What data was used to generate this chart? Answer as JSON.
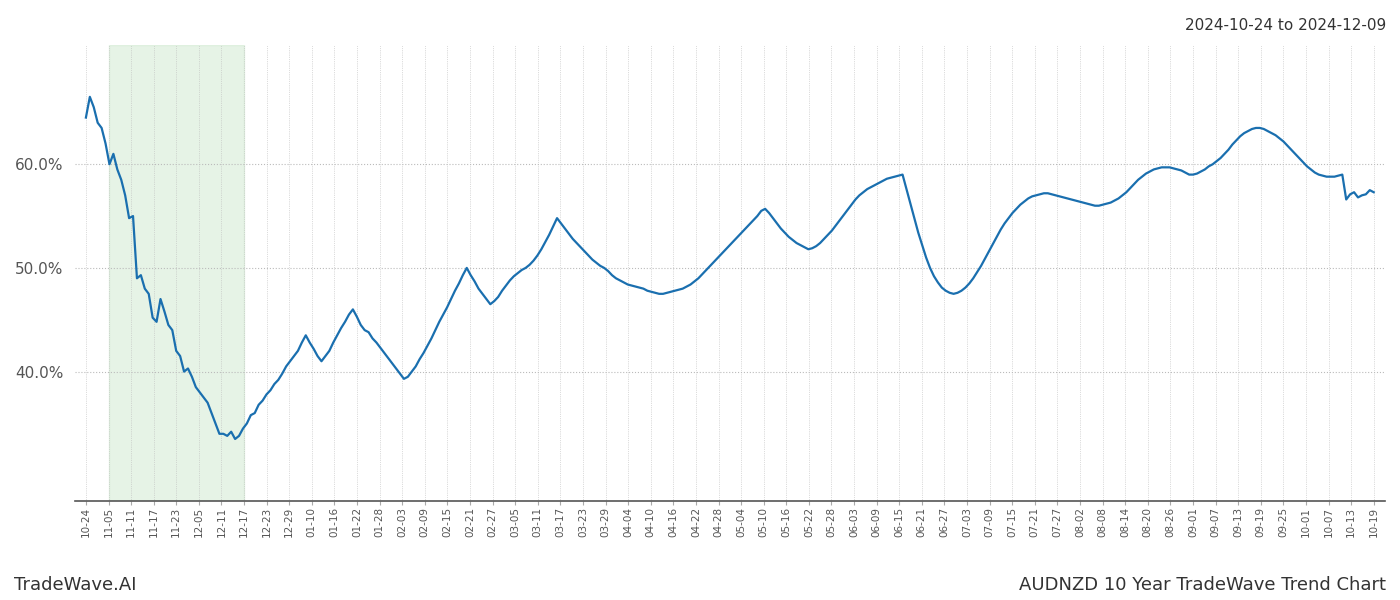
{
  "title_top_right": "2024-10-24 to 2024-12-09",
  "title_bottom_left": "TradeWave.AI",
  "title_bottom_right": "AUDNZD 10 Year TradeWave Trend Chart",
  "line_color": "#1a6faf",
  "line_width": 1.6,
  "shade_color": "#c8e6c9",
  "shade_alpha": 0.45,
  "background_color": "#ffffff",
  "grid_color": "#bbbbbb",
  "grid_style": ":",
  "ytick_labels": [
    "40.0%",
    "50.0%",
    "60.0%"
  ],
  "ytick_values": [
    0.4,
    0.5,
    0.6
  ],
  "ylim": [
    0.275,
    0.715
  ],
  "xtick_labels": [
    "10-24",
    "11-05",
    "11-11",
    "11-17",
    "11-23",
    "12-05",
    "12-11",
    "12-17",
    "12-23",
    "12-29",
    "01-10",
    "01-16",
    "01-22",
    "01-28",
    "02-03",
    "02-09",
    "02-15",
    "02-21",
    "02-27",
    "03-05",
    "03-11",
    "03-17",
    "03-23",
    "03-29",
    "04-04",
    "04-10",
    "04-16",
    "04-22",
    "04-28",
    "05-04",
    "05-10",
    "05-16",
    "05-22",
    "05-28",
    "06-03",
    "06-09",
    "06-15",
    "06-21",
    "06-27",
    "07-03",
    "07-09",
    "07-15",
    "07-21",
    "07-27",
    "08-02",
    "08-08",
    "08-14",
    "08-20",
    "08-26",
    "09-01",
    "09-07",
    "09-13",
    "09-19",
    "09-25",
    "10-01",
    "10-07",
    "10-13",
    "10-19"
  ],
  "shade_label_start": "11-05",
  "shade_label_end": "12-17",
  "values": [
    0.645,
    0.665,
    0.655,
    0.64,
    0.635,
    0.62,
    0.6,
    0.61,
    0.595,
    0.585,
    0.57,
    0.548,
    0.55,
    0.49,
    0.493,
    0.48,
    0.475,
    0.452,
    0.448,
    0.47,
    0.458,
    0.445,
    0.44,
    0.42,
    0.415,
    0.4,
    0.403,
    0.395,
    0.385,
    0.38,
    0.375,
    0.37,
    0.36,
    0.35,
    0.34,
    0.34,
    0.338,
    0.342,
    0.335,
    0.338,
    0.345,
    0.35,
    0.358,
    0.36,
    0.368,
    0.372,
    0.378,
    0.382,
    0.388,
    0.392,
    0.398,
    0.405,
    0.41,
    0.415,
    0.42,
    0.428,
    0.435,
    0.428,
    0.422,
    0.415,
    0.41,
    0.415,
    0.42,
    0.428,
    0.435,
    0.442,
    0.448,
    0.455,
    0.46,
    0.453,
    0.445,
    0.44,
    0.438,
    0.432,
    0.428,
    0.423,
    0.418,
    0.413,
    0.408,
    0.403,
    0.398,
    0.393,
    0.395,
    0.4,
    0.405,
    0.412,
    0.418,
    0.425,
    0.432,
    0.44,
    0.448,
    0.455,
    0.462,
    0.47,
    0.478,
    0.485,
    0.493,
    0.5,
    0.493,
    0.487,
    0.48,
    0.475,
    0.47,
    0.465,
    0.468,
    0.472,
    0.478,
    0.483,
    0.488,
    0.492,
    0.495,
    0.498,
    0.5,
    0.503,
    0.507,
    0.512,
    0.518,
    0.525,
    0.532,
    0.54,
    0.548,
    0.543,
    0.538,
    0.533,
    0.528,
    0.524,
    0.52,
    0.516,
    0.512,
    0.508,
    0.505,
    0.502,
    0.5,
    0.497,
    0.493,
    0.49,
    0.488,
    0.486,
    0.484,
    0.483,
    0.482,
    0.481,
    0.48,
    0.478,
    0.477,
    0.476,
    0.475,
    0.475,
    0.476,
    0.477,
    0.478,
    0.479,
    0.48,
    0.482,
    0.484,
    0.487,
    0.49,
    0.494,
    0.498,
    0.502,
    0.506,
    0.51,
    0.514,
    0.518,
    0.522,
    0.526,
    0.53,
    0.534,
    0.538,
    0.542,
    0.546,
    0.55,
    0.555,
    0.557,
    0.553,
    0.548,
    0.543,
    0.538,
    0.534,
    0.53,
    0.527,
    0.524,
    0.522,
    0.52,
    0.518,
    0.519,
    0.521,
    0.524,
    0.528,
    0.532,
    0.536,
    0.541,
    0.546,
    0.551,
    0.556,
    0.561,
    0.566,
    0.57,
    0.573,
    0.576,
    0.578,
    0.58,
    0.582,
    0.584,
    0.586,
    0.587,
    0.588,
    0.589,
    0.59,
    0.576,
    0.562,
    0.548,
    0.534,
    0.522,
    0.51,
    0.5,
    0.492,
    0.486,
    0.481,
    0.478,
    0.476,
    0.475,
    0.476,
    0.478,
    0.481,
    0.485,
    0.49,
    0.496,
    0.502,
    0.509,
    0.516,
    0.523,
    0.53,
    0.537,
    0.543,
    0.548,
    0.553,
    0.557,
    0.561,
    0.564,
    0.567,
    0.569,
    0.57,
    0.571,
    0.572,
    0.572,
    0.571,
    0.57,
    0.569,
    0.568,
    0.567,
    0.566,
    0.565,
    0.564,
    0.563,
    0.562,
    0.561,
    0.56,
    0.56,
    0.561,
    0.562,
    0.563,
    0.565,
    0.567,
    0.57,
    0.573,
    0.577,
    0.581,
    0.585,
    0.588,
    0.591,
    0.593,
    0.595,
    0.596,
    0.597,
    0.597,
    0.597,
    0.596,
    0.595,
    0.594,
    0.592,
    0.59,
    0.59,
    0.591,
    0.593,
    0.595,
    0.598,
    0.6,
    0.603,
    0.606,
    0.61,
    0.614,
    0.619,
    0.623,
    0.627,
    0.63,
    0.632,
    0.634,
    0.635,
    0.635,
    0.634,
    0.632,
    0.63,
    0.628,
    0.625,
    0.622,
    0.618,
    0.614,
    0.61,
    0.606,
    0.602,
    0.598,
    0.595,
    0.592,
    0.59,
    0.589,
    0.588,
    0.588,
    0.588,
    0.589,
    0.59,
    0.566,
    0.571,
    0.573,
    0.568,
    0.57,
    0.571,
    0.575,
    0.573
  ]
}
